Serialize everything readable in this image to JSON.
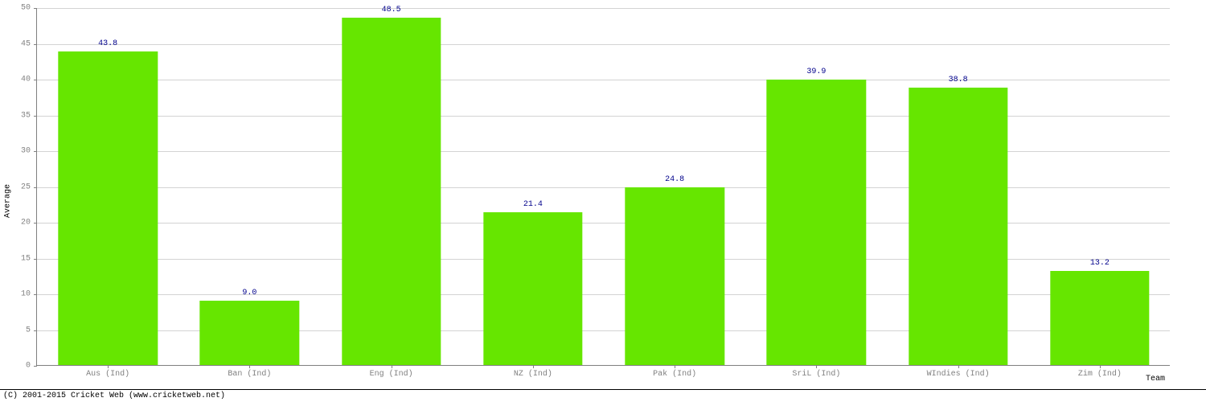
{
  "chart": {
    "type": "bar",
    "categories": [
      "Aus (Ind)",
      "Ban (Ind)",
      "Eng (Ind)",
      "NZ (Ind)",
      "Pak (Ind)",
      "SriL (Ind)",
      "WIndies (Ind)",
      "Zim (Ind)"
    ],
    "values": [
      43.8,
      9.0,
      48.5,
      21.4,
      24.8,
      39.9,
      38.8,
      13.2
    ],
    "value_labels": [
      "43.8",
      "9.0",
      "48.5",
      "21.4",
      "24.8",
      "39.9",
      "38.8",
      "13.2"
    ],
    "bar_color": "#66e600",
    "value_label_color": "#00008b",
    "ylabel": "Average",
    "xlabel": "Team",
    "ylim": [
      0,
      50
    ],
    "ytick_step": 5,
    "axis_color": "#808080",
    "grid_color": "#d3d3d3",
    "tick_label_color": "#808080",
    "axis_title_color": "#000000",
    "label_fontsize": 10,
    "bar_width_ratio": 0.7,
    "background_color": "#ffffff"
  },
  "footer": {
    "text": "(C) 2001-2015 Cricket Web (www.cricketweb.net)",
    "border_color": "#000000",
    "text_color": "#000000"
  }
}
